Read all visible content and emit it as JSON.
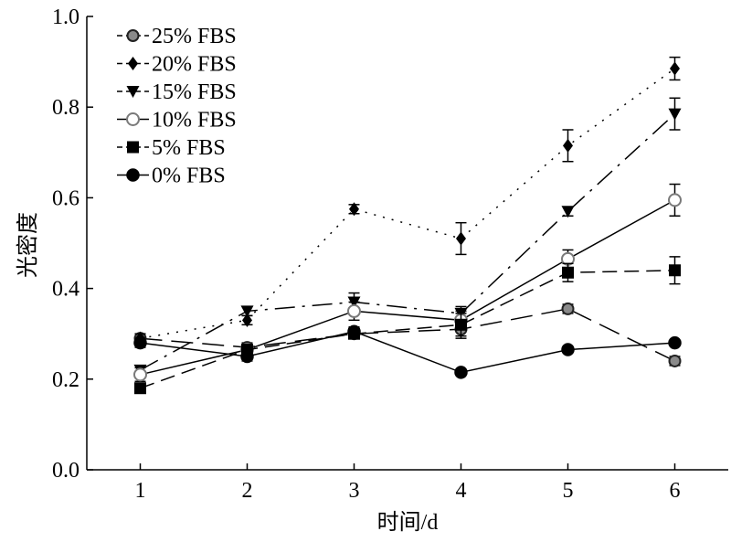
{
  "chart_data": {
    "type": "line",
    "title": "",
    "xlabel": "时间/d",
    "ylabel": "光密度",
    "x": [
      1,
      2,
      3,
      4,
      5,
      6
    ],
    "xlim": [
      0.5,
      6.5
    ],
    "ylim": [
      0,
      1.0
    ],
    "xticks": [
      "1",
      "2",
      "3",
      "4",
      "5",
      "6"
    ],
    "yticks": [
      "0.0",
      "0.2",
      "0.4",
      "0.6",
      "0.8",
      "1.0"
    ],
    "grid": false,
    "legend_position": "top-left",
    "series": [
      {
        "name": "25% FBS",
        "marker": "circle-gray",
        "line": "long-dash",
        "color": "#000000",
        "values": [
          0.29,
          0.27,
          0.3,
          0.31,
          0.355,
          0.24
        ],
        "errors": [
          0.01,
          0.01,
          0.01,
          0.02,
          0.01,
          0.01
        ]
      },
      {
        "name": "20% FBS",
        "marker": "diamond",
        "line": "dotted",
        "color": "#000000",
        "values": [
          0.29,
          0.33,
          0.575,
          0.51,
          0.715,
          0.885
        ],
        "errors": [
          0.01,
          0.01,
          0.01,
          0.035,
          0.035,
          0.025
        ]
      },
      {
        "name": "15% FBS",
        "marker": "triangle-down",
        "line": "dash-dot",
        "color": "#000000",
        "values": [
          0.22,
          0.35,
          0.37,
          0.345,
          0.57,
          0.785
        ],
        "errors": [
          0.01,
          0.01,
          0.02,
          0.015,
          0.01,
          0.035
        ]
      },
      {
        "name": "10% FBS",
        "marker": "circle-open",
        "line": "solid",
        "color": "#000000",
        "values": [
          0.21,
          0.265,
          0.35,
          0.33,
          0.465,
          0.595
        ],
        "errors": [
          0.015,
          0.01,
          0.02,
          0.02,
          0.02,
          0.035
        ]
      },
      {
        "name": "5% FBS",
        "marker": "square",
        "line": "dashed",
        "color": "#000000",
        "values": [
          0.18,
          0.265,
          0.3,
          0.32,
          0.435,
          0.44
        ],
        "errors": [
          0.01,
          0.01,
          0.01,
          0.025,
          0.02,
          0.03
        ]
      },
      {
        "name": "0% FBS",
        "marker": "circle-filled",
        "line": "solid",
        "color": "#000000",
        "values": [
          0.28,
          0.25,
          0.305,
          0.215,
          0.265,
          0.28
        ],
        "errors": [
          0.01,
          0.01,
          0.01,
          0.005,
          0.005,
          0.005
        ]
      }
    ]
  }
}
